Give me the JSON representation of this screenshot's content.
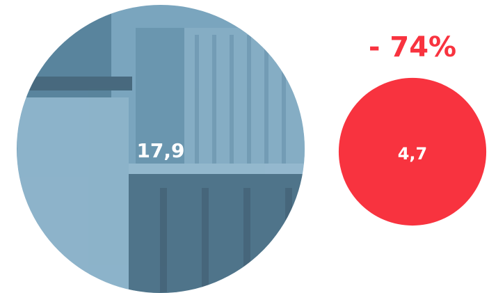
{
  "chart_data": {
    "type": "bubble",
    "values": [
      17.9,
      4.7
    ],
    "value_labels": [
      "17,9",
      "4,7"
    ],
    "colors": [
      "#7aa5be",
      "#f8333f"
    ],
    "annotation": "- 74%"
  }
}
